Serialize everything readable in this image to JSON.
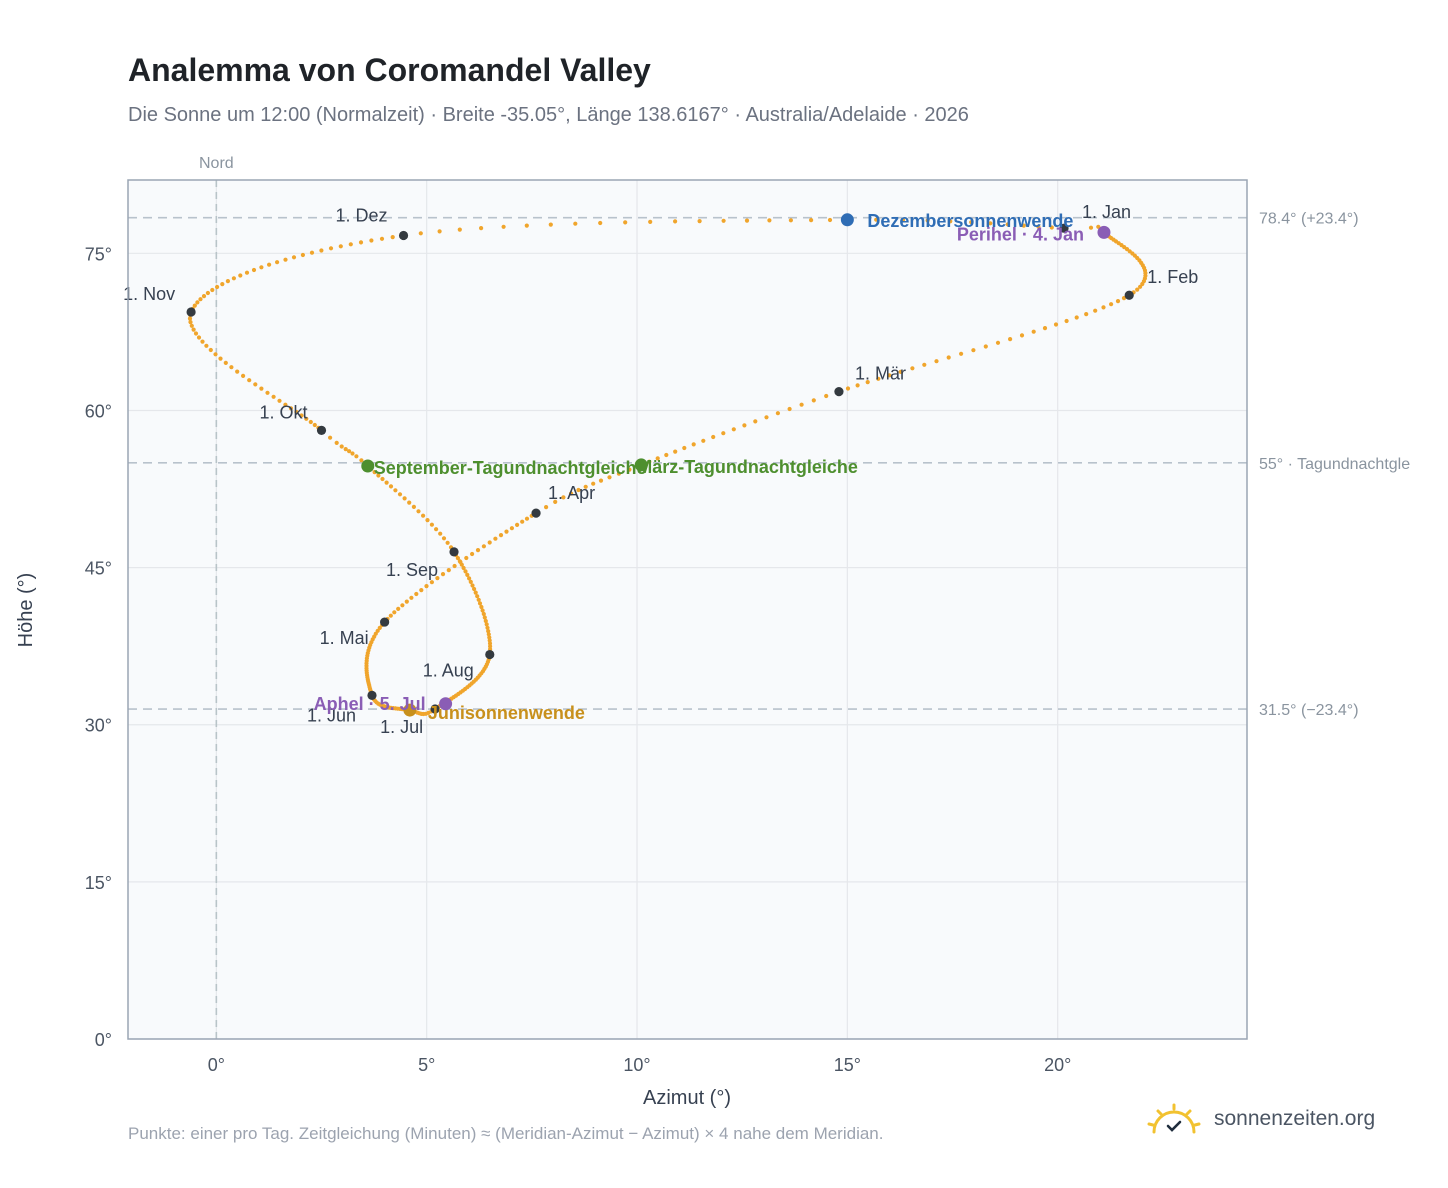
{
  "header": {
    "title": "Analemma von Coromandel Valley",
    "subtitle": "Die Sonne um 12:00 (Normalzeit) · Breite -35.05°, Länge 138.6167° · Australia/Adelaide · 2026"
  },
  "footer": {
    "note": "Punkte: einer pro Tag. Zeitgleichung (Minuten) ≈ (Meridian-Azimut − Azimut) × 4 nahe dem Meridian.",
    "brand": "sonnenzeiten.org",
    "brand_icon": "sun-check-icon"
  },
  "colors": {
    "curve": "#f0a52c",
    "month_marker": "#343a40",
    "december_solstice": "#2f6db5",
    "june_solstice": "#c8901c",
    "equinox": "#4e8f2f",
    "apsis": "#8a5db5",
    "plot_bg": "#f8fafc",
    "grid": "#e5e7eb",
    "frame": "#9aa5b4"
  },
  "chart_data": {
    "type": "scatter",
    "xlabel": "Azimut (°)",
    "ylabel": "Höhe (°)",
    "xlim": [
      -2.1,
      24.5
    ],
    "ylim": [
      0,
      82
    ],
    "x_ticks": [
      0,
      5,
      10,
      15,
      20
    ],
    "x_tick_labels": [
      "0°",
      "5°",
      "10°",
      "15°",
      "20°"
    ],
    "y_ticks": [
      0,
      15,
      30,
      45,
      60,
      75
    ],
    "y_tick_labels": [
      "0°",
      "15°",
      "30°",
      "45°",
      "60°",
      "75°"
    ],
    "grid": true,
    "meridian": {
      "x": 0,
      "label": "Nord"
    },
    "reference_lines": [
      {
        "y": 78.4,
        "label": "78.4° (+23.4°)"
      },
      {
        "y": 55.0,
        "label": "55° · Tagundnachtgle"
      },
      {
        "y": 31.5,
        "label": "31.5° (−23.4°)"
      }
    ],
    "month_markers": [
      {
        "label": "1. Jan",
        "x": 20.15,
        "y": 77.4
      },
      {
        "label": "1. Feb",
        "x": 21.7,
        "y": 71.0
      },
      {
        "label": "1. Mär",
        "x": 14.8,
        "y": 61.8
      },
      {
        "label": "1. Apr",
        "x": 7.6,
        "y": 50.2
      },
      {
        "label": "1. Mai",
        "x": 4.0,
        "y": 39.8
      },
      {
        "label": "1. Jun",
        "x": 3.7,
        "y": 32.8
      },
      {
        "label": "1. Jul",
        "x": 5.2,
        "y": 31.5
      },
      {
        "label": "1. Aug",
        "x": 6.5,
        "y": 36.7
      },
      {
        "label": "1. Sep",
        "x": 5.65,
        "y": 46.5
      },
      {
        "label": "1. Okt",
        "x": 2.5,
        "y": 58.1
      },
      {
        "label": "1. Nov",
        "x": -0.6,
        "y": 69.4
      },
      {
        "label": "1. Dez",
        "x": 4.45,
        "y": 76.7
      }
    ],
    "events": [
      {
        "label": "Dezembersonnenwende",
        "x": 15.0,
        "y": 78.2,
        "kind": "december_solstice"
      },
      {
        "label": "Perihel · 4. Jan",
        "x": 21.1,
        "y": 77.0,
        "kind": "apsis"
      },
      {
        "label": "März-Tagundnachtgleiche",
        "x": 10.1,
        "y": 54.8,
        "kind": "equinox"
      },
      {
        "label": "September-Tagundnachtgleiche",
        "x": 3.6,
        "y": 54.7,
        "kind": "equinox"
      },
      {
        "label": "Junisonnenwende",
        "x": 4.6,
        "y": 31.4,
        "kind": "june_solstice"
      },
      {
        "label": "Aphel · 5. Jul",
        "x": 5.45,
        "y": 32.0,
        "kind": "apsis"
      }
    ]
  }
}
